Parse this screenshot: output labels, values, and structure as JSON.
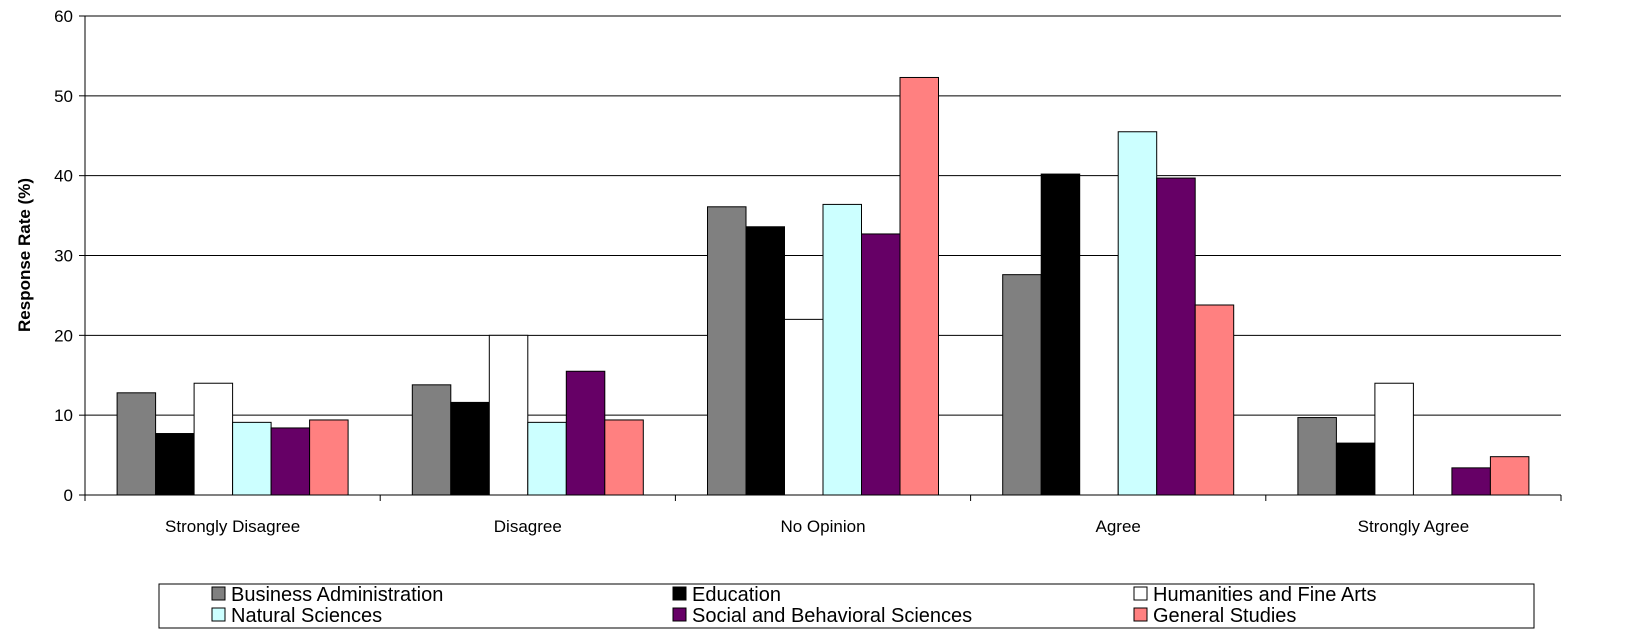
{
  "chart_data": {
    "type": "bar",
    "title": "",
    "xlabel": "",
    "ylabel": "Response Rate (%)",
    "ylim": [
      0,
      60
    ],
    "yticks": [
      0,
      10,
      20,
      30,
      40,
      50,
      60
    ],
    "grid": true,
    "legend_position": "bottom",
    "categories": [
      "Strongly Disagree",
      "Disagree",
      "No Opinion",
      "Agree",
      "Strongly Agree"
    ],
    "series": [
      {
        "name": "Business Administration",
        "color": "#808080",
        "values": [
          12.8,
          13.8,
          36.1,
          27.6,
          9.7
        ]
      },
      {
        "name": "Education",
        "color": "#000000",
        "values": [
          7.7,
          11.6,
          33.6,
          40.2,
          6.5
        ]
      },
      {
        "name": "Humanities and Fine Arts",
        "color": "#ffffff",
        "values": [
          14.0,
          20.0,
          22.0,
          30.0,
          14.0
        ]
      },
      {
        "name": "Natural Sciences",
        "color": "#ccffff",
        "values": [
          9.1,
          9.1,
          36.4,
          45.5,
          0
        ]
      },
      {
        "name": "Social and Behavioral Sciences",
        "color": "#660066",
        "values": [
          8.4,
          15.5,
          32.7,
          39.7,
          3.4
        ]
      },
      {
        "name": "General Studies",
        "color": "#ff8080",
        "values": [
          9.4,
          9.4,
          52.3,
          23.8,
          4.8
        ]
      }
    ]
  }
}
